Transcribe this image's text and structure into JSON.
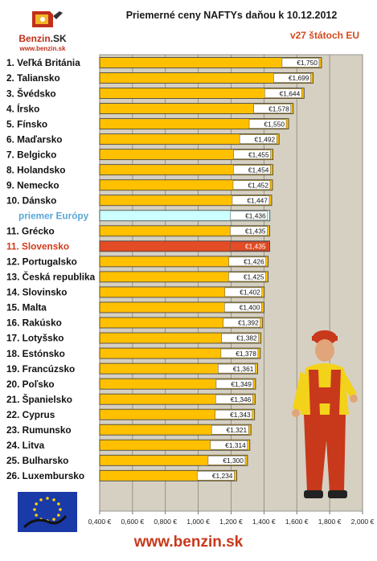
{
  "brand": {
    "logo_name": "Benzin",
    "logo_suffix": ".SK",
    "logo_url": "www.benzin.sk",
    "footer_url": "www.benzin.sk"
  },
  "colors": {
    "bar": "#ffc000",
    "bar_average": "#ccffff",
    "bar_highlight": "#e34c24",
    "plot_bg": "#d6d0c2",
    "highlight_label": "#d03a1a",
    "average_label": "#5aa6d8"
  },
  "chart_data": {
    "type": "bar",
    "orientation": "horizontal",
    "title": "Priemerné ceny NAFTYs daňou k 10.12.2012",
    "subtitle": "v27 štátoch EU",
    "categories": [
      "1. Veľká Británia",
      "2. Taliansko",
      "3. Švédsko",
      "4. Írsko",
      "5. Fínsko",
      "6. Maďarsko",
      "7. Belgicko",
      "8. Holandsko",
      "9. Nemecko",
      "10. Dánsko",
      "priemer Európy",
      "11. Grécko",
      "11. Slovensko",
      "12. Portugalsko",
      "13. Česká republika",
      "14. Slovinsko",
      "15. Malta",
      "16. Rakúsko",
      "17. Lotyšsko",
      "18. Estónsko",
      "19. Francúzsko",
      "20. Poľsko",
      "21. Španielsko",
      "22. Cyprus",
      "23. Rumunsko",
      "24. Litva",
      "25. Bulharsko",
      "26. Luxembursko"
    ],
    "values": [
      1.75,
      1.699,
      1.644,
      1.578,
      1.55,
      1.492,
      1.455,
      1.454,
      1.452,
      1.447,
      1.436,
      1.435,
      1.435,
      1.426,
      1.425,
      1.402,
      1.4,
      1.392,
      1.382,
      1.378,
      1.361,
      1.349,
      1.346,
      1.343,
      1.321,
      1.314,
      1.3,
      1.234
    ],
    "value_labels": [
      "€1,750",
      "€1,699",
      "€1,644",
      "€1,578",
      "€1,550",
      "€1,492",
      "€1,455",
      "€1,454",
      "€1,452",
      "€1,447",
      "€1,436",
      "€1,435",
      "€1,435",
      "€1,426",
      "€1,425",
      "€1,402",
      "€1,400",
      "€1,392",
      "€1,382",
      "€1,378",
      "€1,361",
      "€1,349",
      "€1,346",
      "€1,343",
      "€1,321",
      "€1,314",
      "€1,300",
      "€1,234"
    ],
    "average_index": 10,
    "highlight_index": 12,
    "xlim": [
      0.4,
      2.0
    ],
    "xticks": [
      "0,400 €",
      "0,600 €",
      "0,800 €",
      "1,000 €",
      "1,200 €",
      "1,400 €",
      "1,600 €",
      "1,800 €",
      "2,000 €"
    ],
    "xtick_values": [
      0.4,
      0.6,
      0.8,
      1.0,
      1.2,
      1.4,
      1.6,
      1.8,
      2.0
    ],
    "grid": true,
    "legend": "none"
  }
}
